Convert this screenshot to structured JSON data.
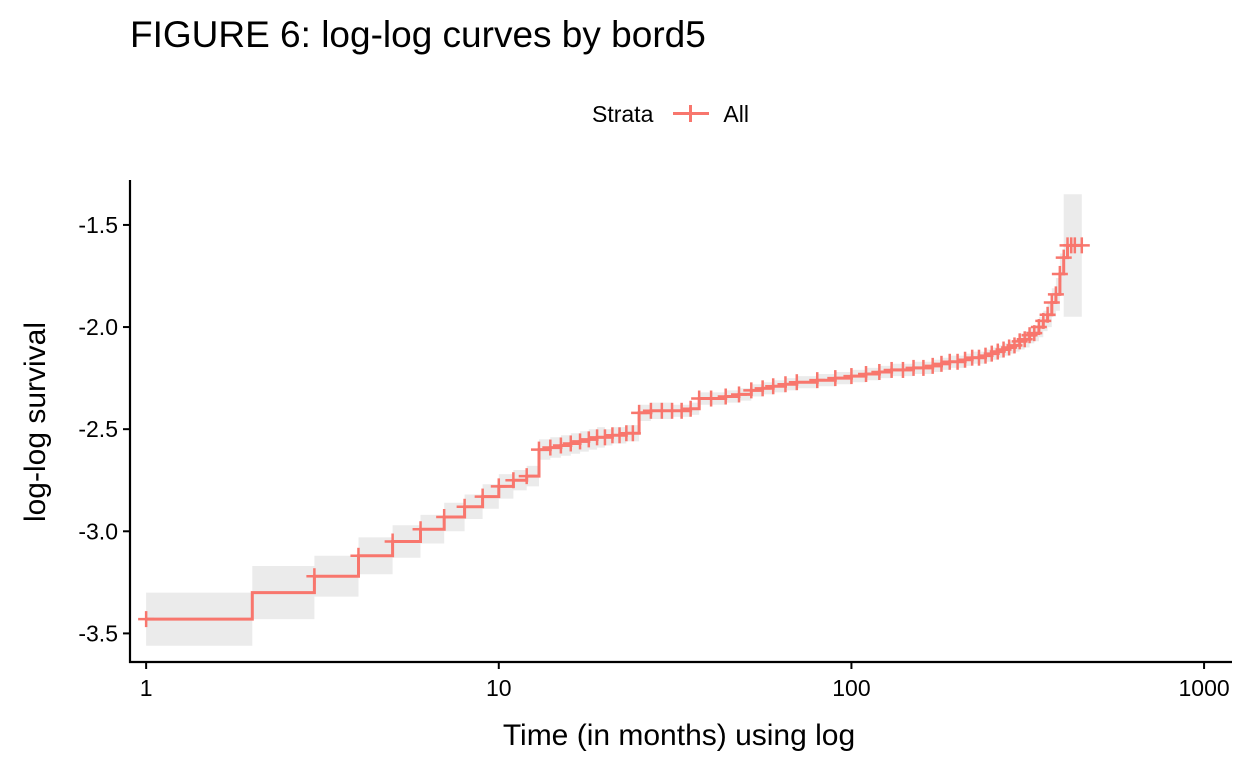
{
  "chart_data": {
    "type": "line",
    "title": "FIGURE 6: log-log curves by bord5",
    "xlabel": "Time (in months) using log",
    "ylabel": "log-log survival",
    "x_scale": "log10",
    "xlim": [
      0.9,
      1200
    ],
    "ylim": [
      -3.64,
      -1.28
    ],
    "x_ticks": [
      1,
      10,
      100,
      1000
    ],
    "x_tick_labels": [
      "1",
      "10",
      "100",
      "1000"
    ],
    "y_ticks": [
      -3.5,
      -3.0,
      -2.5,
      -2.0,
      -1.5
    ],
    "y_tick_labels": [
      "-3.5",
      "-3.0",
      "-2.5",
      "-2.0",
      "-1.5"
    ],
    "grid": false,
    "legend": {
      "title": "Strata",
      "position": "top",
      "entries": [
        "All"
      ]
    },
    "colors": {
      "line": "#F8766D",
      "band": "#EBEBEB",
      "axis": "#000000"
    },
    "series": [
      {
        "name": "All",
        "step": true,
        "x": [
          1,
          2,
          3,
          4,
          5,
          6,
          7,
          8,
          9,
          10,
          11,
          12,
          13,
          14,
          15,
          16,
          17,
          18,
          19,
          20,
          21,
          22,
          23,
          24,
          25,
          27,
          29,
          31,
          33,
          35,
          37,
          40,
          44,
          48,
          52,
          56,
          60,
          65,
          70,
          80,
          90,
          100,
          110,
          120,
          130,
          140,
          150,
          160,
          170,
          180,
          190,
          200,
          210,
          220,
          230,
          240,
          250,
          260,
          270,
          280,
          290,
          300,
          310,
          320,
          330,
          340,
          350,
          360,
          370,
          380,
          390,
          400,
          410,
          420,
          430
        ],
        "y": [
          -3.43,
          -3.3,
          -3.22,
          -3.12,
          -3.05,
          -2.99,
          -2.93,
          -2.88,
          -2.83,
          -2.78,
          -2.75,
          -2.73,
          -2.6,
          -2.59,
          -2.58,
          -2.57,
          -2.56,
          -2.55,
          -2.54,
          -2.54,
          -2.53,
          -2.53,
          -2.52,
          -2.52,
          -2.42,
          -2.41,
          -2.41,
          -2.41,
          -2.41,
          -2.4,
          -2.35,
          -2.35,
          -2.34,
          -2.33,
          -2.31,
          -2.3,
          -2.29,
          -2.28,
          -2.27,
          -2.26,
          -2.25,
          -2.24,
          -2.23,
          -2.22,
          -2.21,
          -2.21,
          -2.2,
          -2.2,
          -2.19,
          -2.18,
          -2.17,
          -2.17,
          -2.16,
          -2.15,
          -2.15,
          -2.14,
          -2.13,
          -2.12,
          -2.11,
          -2.1,
          -2.09,
          -2.07,
          -2.06,
          -2.04,
          -2.03,
          -2.0,
          -1.97,
          -1.94,
          -1.88,
          -1.84,
          -1.74,
          -1.66,
          -1.6,
          -1.6,
          -1.6
        ],
        "ci_lower": [
          -3.56,
          -3.43,
          -3.32,
          -3.21,
          -3.13,
          -3.06,
          -3.0,
          -2.94,
          -2.89,
          -2.84,
          -2.8,
          -2.78,
          -2.65,
          -2.64,
          -2.63,
          -2.62,
          -2.61,
          -2.6,
          -2.59,
          -2.58,
          -2.57,
          -2.57,
          -2.56,
          -2.56,
          -2.46,
          -2.45,
          -2.45,
          -2.44,
          -2.44,
          -2.43,
          -2.38,
          -2.38,
          -2.37,
          -2.36,
          -2.34,
          -2.33,
          -2.32,
          -2.31,
          -2.3,
          -2.29,
          -2.28,
          -2.27,
          -2.26,
          -2.25,
          -2.24,
          -2.24,
          -2.23,
          -2.23,
          -2.22,
          -2.21,
          -2.2,
          -2.2,
          -2.19,
          -2.18,
          -2.18,
          -2.17,
          -2.16,
          -2.15,
          -2.14,
          -2.13,
          -2.12,
          -2.11,
          -2.1,
          -2.08,
          -2.07,
          -2.05,
          -2.02,
          -2.0,
          -1.95,
          -1.92,
          -1.84,
          -1.95,
          -1.95,
          -1.95,
          -1.95
        ],
        "ci_upper": [
          -3.3,
          -3.17,
          -3.12,
          -3.03,
          -2.97,
          -2.92,
          -2.86,
          -2.82,
          -2.77,
          -2.72,
          -2.7,
          -2.68,
          -2.55,
          -2.54,
          -2.53,
          -2.52,
          -2.51,
          -2.5,
          -2.49,
          -2.5,
          -2.49,
          -2.49,
          -2.48,
          -2.48,
          -2.38,
          -2.37,
          -2.37,
          -2.38,
          -2.38,
          -2.37,
          -2.32,
          -2.32,
          -2.31,
          -2.3,
          -2.28,
          -2.27,
          -2.26,
          -2.25,
          -2.24,
          -2.23,
          -2.22,
          -2.21,
          -2.2,
          -2.19,
          -2.18,
          -2.18,
          -2.17,
          -2.17,
          -2.16,
          -2.15,
          -2.14,
          -2.14,
          -2.13,
          -2.12,
          -2.12,
          -2.11,
          -2.1,
          -2.09,
          -2.08,
          -2.07,
          -2.06,
          -2.03,
          -2.02,
          -2.0,
          -1.99,
          -1.95,
          -1.92,
          -1.88,
          -1.81,
          -1.76,
          -1.64,
          -1.35,
          -1.35,
          -1.35,
          -1.35
        ],
        "censor_marks": [
          1,
          3,
          4,
          5,
          6,
          7,
          8,
          9,
          10,
          11,
          12,
          13,
          14,
          15,
          16,
          17,
          18,
          19,
          20,
          21,
          22,
          23,
          24,
          25,
          27,
          29,
          31,
          33,
          35,
          37,
          40,
          44,
          48,
          52,
          56,
          60,
          65,
          70,
          80,
          90,
          100,
          110,
          120,
          130,
          140,
          150,
          160,
          170,
          180,
          190,
          200,
          210,
          220,
          230,
          240,
          250,
          260,
          270,
          280,
          290,
          300,
          310,
          320,
          330,
          340,
          350,
          360,
          370,
          380,
          390,
          400,
          410,
          420,
          430,
          450
        ]
      }
    ]
  }
}
